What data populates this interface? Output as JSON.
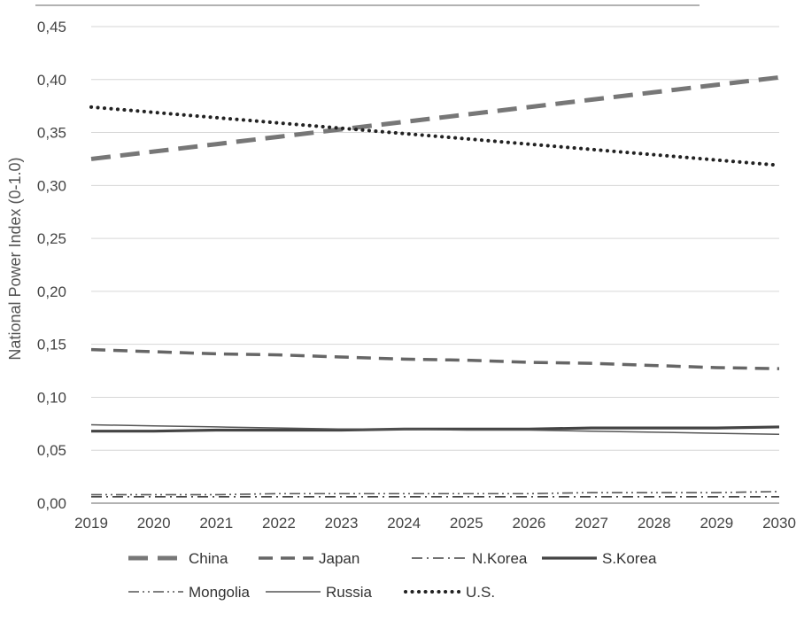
{
  "chart_data": {
    "type": "line",
    "title": "",
    "xlabel": "",
    "ylabel": "National Power Index (0-1.0)",
    "x": [
      2019,
      2020,
      2021,
      2022,
      2023,
      2024,
      2025,
      2026,
      2027,
      2028,
      2029,
      2030
    ],
    "x_tick_labels": [
      "2019",
      "2020",
      "2021",
      "2022",
      "2023",
      "2024",
      "2025",
      "2026",
      "2027",
      "2028",
      "2029",
      "2030"
    ],
    "ylim": [
      0,
      0.45
    ],
    "y_ticks": [
      0,
      0.05,
      0.1,
      0.15,
      0.2,
      0.25,
      0.3,
      0.35,
      0.4,
      0.45
    ],
    "y_tick_labels": [
      "0,00",
      "0,05",
      "0,10",
      "0,15",
      "0,20",
      "0,25",
      "0,30",
      "0,35",
      "0,40",
      "0,45"
    ],
    "grid": "horizontal",
    "legend_position": "bottom",
    "series": [
      {
        "name": "China",
        "style": "long-dash-thick",
        "color": "#777777",
        "values": [
          0.325,
          0.332,
          0.339,
          0.346,
          0.353,
          0.36,
          0.367,
          0.374,
          0.381,
          0.388,
          0.395,
          0.402
        ]
      },
      {
        "name": "Japan",
        "style": "dash",
        "color": "#666666",
        "values": [
          0.145,
          0.143,
          0.141,
          0.14,
          0.138,
          0.136,
          0.135,
          0.133,
          0.132,
          0.13,
          0.128,
          0.127
        ]
      },
      {
        "name": "N.Korea",
        "style": "dash-dot",
        "color": "#444444",
        "values": [
          0.006,
          0.006,
          0.006,
          0.006,
          0.006,
          0.006,
          0.006,
          0.006,
          0.006,
          0.006,
          0.006,
          0.006
        ]
      },
      {
        "name": "S.Korea",
        "style": "solid-thick",
        "color": "#444444",
        "values": [
          0.068,
          0.068,
          0.069,
          0.069,
          0.069,
          0.07,
          0.07,
          0.07,
          0.071,
          0.071,
          0.071,
          0.072
        ]
      },
      {
        "name": "Mongolia",
        "style": "dash-dot-dot",
        "color": "#555555",
        "values": [
          0.008,
          0.008,
          0.008,
          0.009,
          0.009,
          0.009,
          0.009,
          0.009,
          0.01,
          0.01,
          0.01,
          0.011
        ]
      },
      {
        "name": "Russia",
        "style": "solid-thin",
        "color": "#555555",
        "values": [
          0.074,
          0.073,
          0.072,
          0.071,
          0.07,
          0.07,
          0.069,
          0.069,
          0.068,
          0.067,
          0.066,
          0.065
        ]
      },
      {
        "name": "U.S.",
        "style": "dotted",
        "color": "#222222",
        "values": [
          0.374,
          0.369,
          0.364,
          0.359,
          0.354,
          0.349,
          0.344,
          0.339,
          0.334,
          0.329,
          0.324,
          0.319
        ]
      }
    ]
  }
}
